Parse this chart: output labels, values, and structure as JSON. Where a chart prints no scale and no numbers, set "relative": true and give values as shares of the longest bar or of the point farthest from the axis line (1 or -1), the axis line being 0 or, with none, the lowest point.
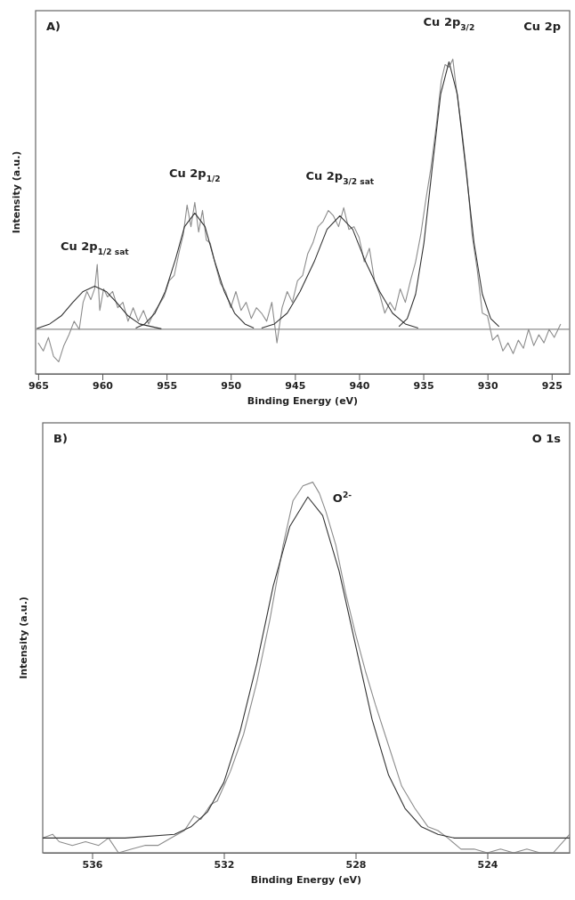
{
  "chart_data": [
    {
      "type": "line",
      "relative": true,
      "xlabel": "Binding Energy (eV)",
      "ylabel": "Intensity (a.u.)",
      "xlim": [
        965.2,
        923.6
      ],
      "xticks": [
        965,
        960,
        955,
        950,
        945,
        940,
        935,
        930,
        925
      ],
      "grid": false,
      "ref_lines": [
        {
          "axis": "y",
          "value": 0,
          "color": "#8c8c8c"
        }
      ],
      "annotations": [
        "A)",
        "Cu 2p",
        "Cu 2p$_{1/2 sat}$",
        "Cu 2p$_{1/2}$",
        "Cu 2p$_{3/2 sat}$",
        "Cu 2p$_{3/2}$"
      ],
      "series": [
        {
          "color": "#8c8c8c",
          "x": [
            965,
            964.6,
            964.2,
            963.8,
            963.4,
            963,
            962.6,
            962.2,
            961.8,
            961.5,
            961.2,
            960.9,
            960.6,
            960.4,
            960.2,
            959.9,
            959.6,
            959.2,
            958.8,
            958.4,
            958,
            957.6,
            957.2,
            956.8,
            956.4,
            956,
            955.6,
            955.2,
            954.8,
            954.4,
            954,
            953.7,
            953.4,
            953.1,
            952.8,
            952.5,
            952.2,
            951.9,
            951.6,
            951.2,
            950.8,
            950.4,
            950,
            949.6,
            949.2,
            948.8,
            948.4,
            948,
            947.6,
            947.2,
            946.8,
            946.4,
            946,
            945.6,
            945.2,
            944.8,
            944.4,
            944,
            943.6,
            943.2,
            942.8,
            942.4,
            942,
            941.6,
            941.2,
            940.8,
            940.4,
            940,
            939.6,
            939.2,
            938.8,
            938.4,
            938,
            937.6,
            937.2,
            936.8,
            936.4,
            936,
            935.6,
            935.2,
            934.8,
            934.4,
            934,
            933.6,
            933.3,
            933,
            932.7,
            932.4,
            932,
            931.6,
            931.2,
            930.8,
            930.4,
            930,
            929.6,
            929.2,
            928.8,
            928.4,
            928,
            927.6,
            927.2,
            926.8,
            926.4,
            926,
            925.6,
            925.2,
            924.8,
            924.3
          ],
          "values": [
            -0.05,
            -0.08,
            -0.03,
            -0.1,
            -0.12,
            -0.06,
            -0.02,
            0.03,
            0.0,
            0.1,
            0.14,
            0.11,
            0.15,
            0.24,
            0.07,
            0.15,
            0.12,
            0.14,
            0.08,
            0.1,
            0.03,
            0.08,
            0.03,
            0.07,
            0.02,
            0.06,
            0.09,
            0.12,
            0.18,
            0.2,
            0.29,
            0.35,
            0.46,
            0.38,
            0.47,
            0.36,
            0.44,
            0.33,
            0.32,
            0.24,
            0.17,
            0.14,
            0.08,
            0.14,
            0.07,
            0.1,
            0.04,
            0.08,
            0.06,
            0.03,
            0.1,
            -0.05,
            0.08,
            0.14,
            0.1,
            0.18,
            0.2,
            0.28,
            0.32,
            0.38,
            0.4,
            0.44,
            0.42,
            0.38,
            0.45,
            0.37,
            0.38,
            0.34,
            0.25,
            0.3,
            0.18,
            0.13,
            0.06,
            0.1,
            0.07,
            0.15,
            0.1,
            0.18,
            0.25,
            0.35,
            0.48,
            0.6,
            0.75,
            0.92,
            0.98,
            0.97,
            1.0,
            0.88,
            0.74,
            0.57,
            0.35,
            0.22,
            0.06,
            0.05,
            -0.04,
            -0.02,
            -0.08,
            -0.05,
            -0.09,
            -0.04,
            -0.07,
            0.0,
            -0.06,
            -0.02,
            -0.05,
            0.0,
            -0.03,
            0.02
          ]
        },
        {
          "color": "#333333",
          "x": [
            965.1,
            964.1,
            963.2,
            962.3,
            961.5,
            960.6,
            959.7,
            958.9,
            958.0,
            957.1,
            955.4
          ],
          "values": [
            0.003,
            0.02,
            0.05,
            0.1,
            0.14,
            0.16,
            0.14,
            0.1,
            0.05,
            0.02,
            0.002
          ]
        },
        {
          "color": "#333333",
          "x": [
            957.4,
            956.7,
            955.9,
            955.1,
            954.3,
            953.6,
            952.8,
            952.0,
            951.3,
            950.5,
            949.7,
            948.9,
            948.2
          ],
          "values": [
            0.005,
            0.02,
            0.06,
            0.14,
            0.26,
            0.38,
            0.43,
            0.38,
            0.26,
            0.14,
            0.06,
            0.02,
            0.005
          ]
        },
        {
          "color": "#333333",
          "x": [
            947.6,
            946.6,
            945.6,
            944.6,
            943.5,
            942.5,
            941.5,
            940.5,
            939.5,
            938.4,
            937.4,
            936.4,
            935.4
          ],
          "values": [
            0.005,
            0.02,
            0.06,
            0.14,
            0.25,
            0.37,
            0.42,
            0.37,
            0.25,
            0.14,
            0.06,
            0.02,
            0.005
          ]
        },
        {
          "color": "#333333",
          "x": [
            936.9,
            936.25,
            935.6,
            934.95,
            934.3,
            933.65,
            933,
            932.35,
            931.7,
            931.05,
            930.4,
            929.75,
            929.1
          ],
          "values": [
            0.01,
            0.04,
            0.13,
            0.32,
            0.6,
            0.87,
            0.99,
            0.87,
            0.6,
            0.32,
            0.13,
            0.04,
            0.01
          ]
        }
      ]
    },
    {
      "type": "line",
      "relative": true,
      "xlabel": "Binding Energy (eV)",
      "ylabel": "Intensity (a.u.)",
      "xlim": [
        537.5,
        521.5
      ],
      "xticks": [
        536,
        532,
        528,
        524
      ],
      "grid": false,
      "annotations": [
        "B)",
        "O 1s",
        "O$^{2-}$"
      ],
      "series": [
        {
          "color": "#8c8c8c",
          "x": [
            537.5,
            537.2,
            537,
            536.6,
            536.2,
            535.8,
            535.5,
            535.2,
            534.8,
            534.4,
            534,
            533.6,
            533.2,
            532.9,
            532.7,
            532.4,
            532.2,
            531.8,
            531.4,
            531,
            530.6,
            530.2,
            529.9,
            529.6,
            529.3,
            529.1,
            528.9,
            528.6,
            528.3,
            528,
            527.7,
            527.4,
            527,
            526.6,
            526.2,
            525.8,
            525.5,
            525.2,
            524.8,
            524.4,
            524,
            523.6,
            523.2,
            522.8,
            522.4,
            522,
            521.6,
            521.5
          ],
          "values": [
            0.04,
            0.05,
            0.03,
            0.02,
            0.03,
            0.02,
            0.04,
            0,
            0.01,
            0.02,
            0.02,
            0.04,
            0.06,
            0.1,
            0.09,
            0.13,
            0.14,
            0.22,
            0.32,
            0.46,
            0.63,
            0.83,
            0.95,
            0.99,
            1,
            0.97,
            0.92,
            0.83,
            0.7,
            0.59,
            0.49,
            0.4,
            0.29,
            0.18,
            0.12,
            0.07,
            0.06,
            0.04,
            0.01,
            0.01,
            0,
            0.01,
            0,
            0.01,
            0,
            0,
            0.04,
            0.05
          ]
        },
        {
          "color": "#333333",
          "x": [
            537.5,
            535,
            533.5,
            533,
            532.5,
            532,
            531.5,
            531,
            530.5,
            530,
            529.45,
            529,
            528.5,
            528,
            527.5,
            527,
            526.5,
            526,
            525.5,
            525,
            524,
            521.5
          ],
          "values": [
            0.04,
            0.04,
            0.05,
            0.07,
            0.11,
            0.19,
            0.33,
            0.51,
            0.72,
            0.88,
            0.96,
            0.91,
            0.76,
            0.56,
            0.36,
            0.21,
            0.12,
            0.07,
            0.05,
            0.04,
            0.04,
            0.04
          ]
        }
      ]
    }
  ]
}
